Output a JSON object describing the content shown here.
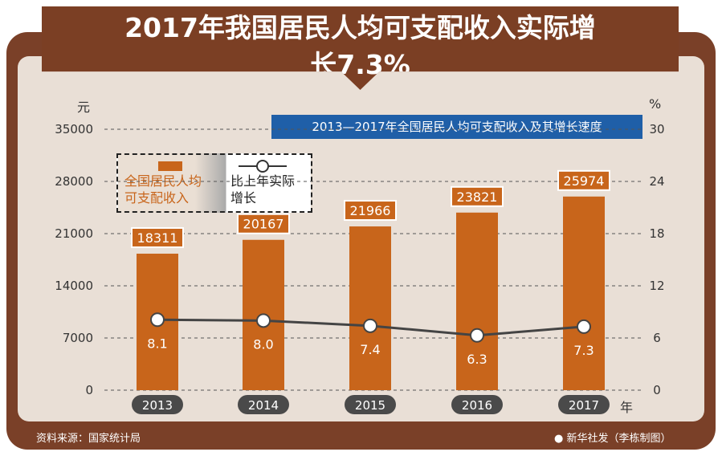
{
  "title": "2017年我国居民人均可支配收入实际增长7.3%",
  "chart_data": {
    "type": "bar+line",
    "subtitle": "2013—2017年全国居民人均可支配收入及其增长速度",
    "categories": [
      "2013",
      "2014",
      "2015",
      "2016",
      "2017"
    ],
    "x_unit": "年",
    "y_left": {
      "unit": "元",
      "ticks": [
        "35000",
        "28000",
        "21000",
        "14000",
        "7000",
        "0"
      ],
      "range": [
        0,
        35000
      ]
    },
    "y_right": {
      "unit": "%",
      "ticks": [
        "30",
        "24",
        "18",
        "12",
        "6",
        "0"
      ],
      "range": [
        0,
        30
      ]
    },
    "series": [
      {
        "name": "全国居民人均可支配收入",
        "type": "bar",
        "axis": "left",
        "values": [
          18311,
          20167,
          21966,
          23821,
          25974
        ],
        "labels": [
          "18311",
          "20167",
          "21966",
          "23821",
          "25974"
        ],
        "color": "#c8651b"
      },
      {
        "name": "比上年实际增长",
        "type": "line",
        "axis": "right",
        "values": [
          8.1,
          8.0,
          7.4,
          6.3,
          7.3
        ],
        "labels": [
          "8.1",
          "8.0",
          "7.4",
          "6.3",
          "7.3"
        ],
        "color": "#444444"
      }
    ],
    "grid": "dashed horizontal"
  },
  "legend": {
    "bar": "全国居民人均可支配收入",
    "line": "比上年实际增长"
  },
  "source": "资料来源：国家统计局",
  "credit": "新华社发（李栋制图）"
}
